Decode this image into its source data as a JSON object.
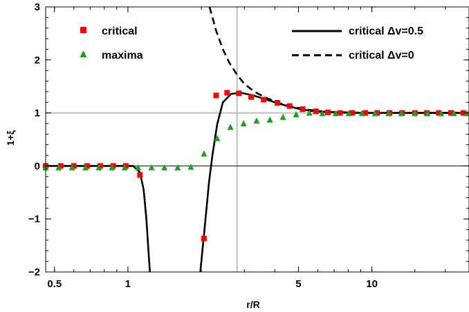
{
  "chart_data": {
    "type": "scatter",
    "title": "",
    "xlabel": "r/R",
    "ylabel": "1+ξ",
    "xscale": "log",
    "xlim": [
      0.46,
      25
    ],
    "ylim": [
      -2,
      3
    ],
    "x_ticks": [
      0.5,
      1,
      5,
      10
    ],
    "x_tick_labels": [
      "0.5",
      "1",
      "5",
      "10"
    ],
    "y_ticks": [
      -2,
      -1,
      0,
      1,
      2,
      3
    ],
    "y_tick_labels": [
      "−2",
      "−1",
      "0",
      "1",
      "2",
      "3"
    ],
    "reference_lines": {
      "vertical_x": 2.8,
      "horizontal_y": 1,
      "zero_y": 0
    },
    "legend_position": "top",
    "legend": [
      {
        "label": "critical",
        "marker": "square",
        "color": "#ff0000"
      },
      {
        "label": "maxima",
        "marker": "triangle",
        "color": "#1aa31a"
      },
      {
        "label": "critical Δv=0.5",
        "line": "solid",
        "color": "#000000"
      },
      {
        "label": "critical Δv=0",
        "line": "dashed",
        "color": "#000000"
      }
    ],
    "series": [
      {
        "name": "critical",
        "kind": "points",
        "marker": "square",
        "color": "#ff0000",
        "x": [
          0.46,
          0.53,
          0.6,
          0.68,
          0.77,
          0.87,
          0.98,
          1.12,
          2.05,
          2.3,
          2.55,
          2.85,
          3.2,
          3.6,
          4.1,
          4.6,
          5.2,
          5.9,
          6.6,
          7.4,
          8.3,
          9.4,
          10.5,
          11.8,
          13.3,
          15,
          16.8,
          18.8,
          21.1,
          23.7
        ],
        "y": [
          0,
          0,
          0,
          0,
          0,
          0,
          0,
          -0.17,
          -1.37,
          1.33,
          1.38,
          1.37,
          1.3,
          1.25,
          1.19,
          1.13,
          1.07,
          1.03,
          1.01,
          1,
          1,
          1,
          1,
          1,
          1,
          1,
          1,
          1,
          1,
          1
        ]
      },
      {
        "name": "maxima",
        "kind": "points",
        "marker": "triangle",
        "color": "#1aa31a",
        "x": [
          0.46,
          0.52,
          0.59,
          0.67,
          0.76,
          0.86,
          0.97,
          1.1,
          1.25,
          1.41,
          1.6,
          1.81,
          2.05,
          2.32,
          2.63,
          2.98,
          3.37,
          3.82,
          4.32,
          4.89,
          5.54,
          6.27,
          7.1,
          8.04,
          9.1,
          10.3,
          11.7,
          13.2,
          15,
          16.9,
          19.2,
          21.7,
          24.6
        ],
        "y": [
          -0.03,
          -0.03,
          -0.03,
          -0.03,
          -0.03,
          -0.03,
          -0.03,
          -0.03,
          -0.03,
          -0.03,
          -0.03,
          -0.02,
          0.23,
          0.52,
          0.73,
          0.8,
          0.85,
          0.87,
          0.92,
          0.97,
          1.0,
          0.99,
          0.99,
          0.99,
          0.99,
          0.99,
          0.99,
          0.99,
          0.99,
          0.99,
          0.99,
          0.99,
          0.99
        ]
      },
      {
        "name": "critical Δv=0.5",
        "kind": "line",
        "dash": "solid",
        "color": "#000000",
        "segments": [
          {
            "x": [
              0.46,
              0.9,
              1.05,
              1.12,
              1.16,
              1.19,
              1.21,
              1.23
            ],
            "y": [
              0,
              0,
              0,
              -0.12,
              -0.45,
              -1.0,
              -1.5,
              -2.0
            ]
          },
          {
            "x": [
              1.98,
              2.02,
              2.06,
              2.1,
              2.15,
              2.22,
              2.32,
              2.45,
              2.65,
              2.9,
              3.2,
              3.6,
              4.0,
              4.5,
              5.0,
              5.6,
              6.2,
              7,
              8.5,
              10,
              15,
              25
            ],
            "y": [
              -2.0,
              -1.6,
              -1.2,
              -0.8,
              -0.3,
              0.2,
              0.78,
              1.2,
              1.36,
              1.38,
              1.34,
              1.27,
              1.2,
              1.13,
              1.08,
              1.04,
              1.02,
              1.01,
              1.0,
              1.0,
              1.0,
              1.0
            ]
          }
        ]
      },
      {
        "name": "critical Δv=0",
        "kind": "line",
        "dash": "dashed",
        "color": "#000000",
        "segments": [
          {
            "x": [
              2.16,
              2.3,
              2.45,
              2.6,
              2.8,
              3.0,
              3.3,
              3.7,
              4.2,
              4.8,
              5.5,
              6.5,
              8,
              10,
              15,
              25
            ],
            "y": [
              3.0,
              2.55,
              2.2,
              1.95,
              1.72,
              1.55,
              1.4,
              1.28,
              1.18,
              1.11,
              1.06,
              1.02,
              1.01,
              1.0,
              1.0,
              1.0
            ]
          }
        ]
      }
    ]
  }
}
